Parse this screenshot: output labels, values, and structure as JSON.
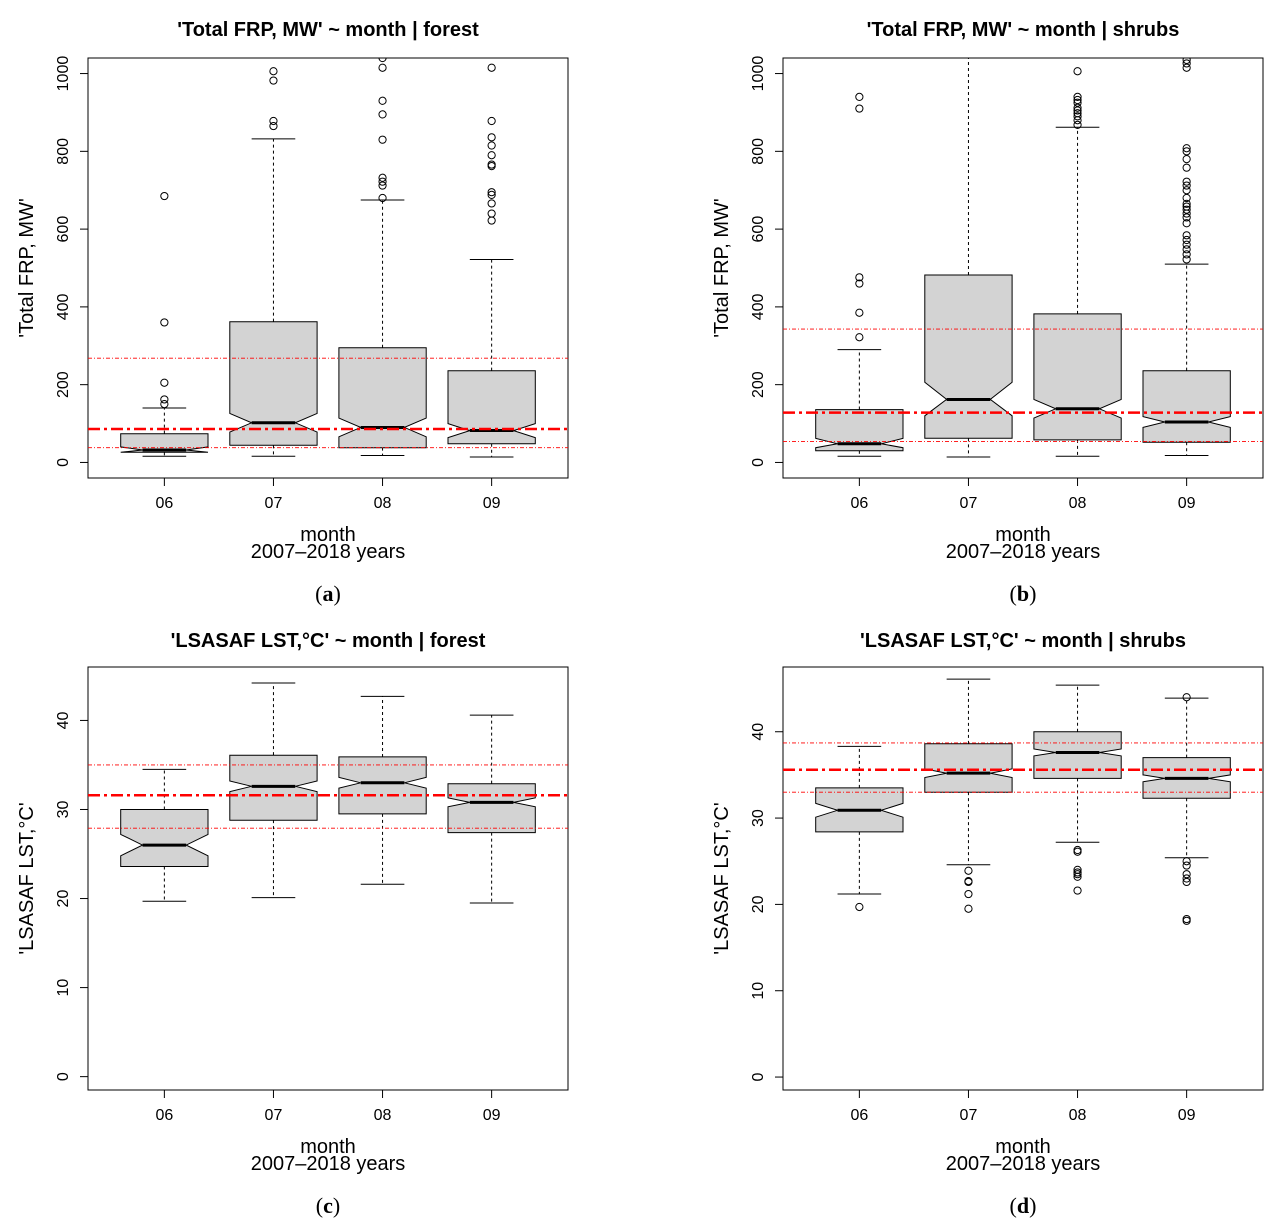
{
  "colors": {
    "box_fill": "#d3d3d3",
    "ref_line": "#ff0000",
    "median": "#000000"
  },
  "chart_data": [
    {
      "id": "a",
      "type": "box",
      "title": "'Total FRP, MW' ~ month | forest",
      "xlabel": "month",
      "xsublabel": "2007–2018 years",
      "ylabel": "'Total FRP, MW'",
      "caption": "a",
      "ylim": [
        -40,
        1040
      ],
      "yticks": [
        0,
        200,
        400,
        600,
        800,
        1000
      ],
      "categories": [
        "06",
        "07",
        "08",
        "09"
      ],
      "boxes": [
        {
          "q1": 26,
          "median": 32,
          "q3": 74,
          "lower_whisker": 16,
          "upper_whisker": 140,
          "notch": [
            24,
            40
          ],
          "outliers": [
            150,
            162,
            205,
            360,
            685
          ]
        },
        {
          "q1": 44,
          "median": 102,
          "q3": 362,
          "lower_whisker": 16,
          "upper_whisker": 832,
          "notch": [
            78,
            126
          ],
          "outliers": [
            865,
            878,
            982,
            1006
          ]
        },
        {
          "q1": 38,
          "median": 90,
          "q3": 295,
          "lower_whisker": 18,
          "upper_whisker": 675,
          "notch": [
            66,
            114
          ],
          "outliers": [
            680,
            712,
            722,
            732,
            830,
            895,
            930,
            1015,
            1040
          ]
        },
        {
          "q1": 48,
          "median": 82,
          "q3": 236,
          "lower_whisker": 14,
          "upper_whisker": 522,
          "notch": [
            64,
            100
          ],
          "outliers": [
            622,
            640,
            666,
            688,
            695,
            762,
            766,
            790,
            815,
            836,
            878,
            1015
          ]
        }
      ],
      "hlines": [
        {
          "value": 86,
          "style": "main"
        },
        {
          "value": 268,
          "style": "thin"
        },
        {
          "value": 38,
          "style": "thin"
        }
      ]
    },
    {
      "id": "b",
      "type": "box",
      "title": "'Total FRP, MW' ~ month | shrubs",
      "xlabel": "month",
      "xsublabel": "2007–2018 years",
      "ylabel": "'Total FRP, MW'",
      "caption": "b",
      "ylim": [
        -40,
        1040
      ],
      "yticks": [
        0,
        200,
        400,
        600,
        800,
        1000
      ],
      "categories": [
        "06",
        "07",
        "08",
        "09"
      ],
      "boxes": [
        {
          "q1": 30,
          "median": 48,
          "q3": 136,
          "lower_whisker": 16,
          "upper_whisker": 290,
          "notch": [
            38,
            62
          ],
          "outliers": [
            322,
            385,
            460,
            476,
            910,
            940
          ]
        },
        {
          "q1": 62,
          "median": 162,
          "q3": 482,
          "lower_whisker": 14,
          "upper_whisker": 1040,
          "notch": [
            120,
            206
          ],
          "outliers": []
        },
        {
          "q1": 58,
          "median": 138,
          "q3": 382,
          "lower_whisker": 16,
          "upper_whisker": 862,
          "notch": [
            114,
            162
          ],
          "outliers": [
            868,
            880,
            890,
            898,
            905,
            912,
            925,
            932,
            940,
            1006
          ]
        },
        {
          "q1": 52,
          "median": 104,
          "q3": 236,
          "lower_whisker": 18,
          "upper_whisker": 510,
          "notch": [
            90,
            118
          ],
          "outliers": [
            522,
            535,
            548,
            560,
            572,
            584,
            615,
            630,
            640,
            650,
            658,
            665,
            680,
            700,
            712,
            722,
            758,
            780,
            800,
            808,
            1015,
            1026,
            1035
          ]
        }
      ],
      "hlines": [
        {
          "value": 128,
          "style": "main"
        },
        {
          "value": 343,
          "style": "thin"
        },
        {
          "value": 54,
          "style": "thin"
        }
      ]
    },
    {
      "id": "c",
      "type": "box",
      "title": "'LSASAF LST,°C' ~ month | forest",
      "xlabel": "month",
      "xsublabel": "2007–2018 years",
      "ylabel": "'LSASAF LST,°C'",
      "caption": "c",
      "ylim": [
        -1.5,
        46
      ],
      "yticks": [
        0,
        10,
        20,
        30,
        40
      ],
      "categories": [
        "06",
        "07",
        "08",
        "09"
      ],
      "boxes": [
        {
          "q1": 23.6,
          "median": 26.0,
          "q3": 30.0,
          "lower_whisker": 19.7,
          "upper_whisker": 34.5,
          "notch": [
            24.8,
            27.2
          ],
          "outliers": []
        },
        {
          "q1": 28.8,
          "median": 32.6,
          "q3": 36.1,
          "lower_whisker": 20.1,
          "upper_whisker": 44.2,
          "notch": [
            32.0,
            33.2
          ],
          "outliers": []
        },
        {
          "q1": 29.5,
          "median": 33.0,
          "q3": 35.9,
          "lower_whisker": 21.6,
          "upper_whisker": 42.7,
          "notch": [
            32.4,
            33.6
          ],
          "outliers": []
        },
        {
          "q1": 27.4,
          "median": 30.8,
          "q3": 32.9,
          "lower_whisker": 19.5,
          "upper_whisker": 40.6,
          "notch": [
            30.3,
            31.3
          ],
          "outliers": []
        }
      ],
      "hlines": [
        {
          "value": 31.6,
          "style": "main"
        },
        {
          "value": 35.0,
          "style": "thin"
        },
        {
          "value": 27.9,
          "style": "thin"
        }
      ]
    },
    {
      "id": "d",
      "type": "box",
      "title": "'LSASAF LST,°C' ~ month | shrubs",
      "xlabel": "month",
      "xsublabel": "2007–2018 years",
      "ylabel": "'LSASAF LST,°C'",
      "caption": "d",
      "ylim": [
        -1.5,
        47.5
      ],
      "yticks": [
        0,
        10,
        20,
        30,
        40
      ],
      "categories": [
        "06",
        "07",
        "08",
        "09"
      ],
      "boxes": [
        {
          "q1": 28.4,
          "median": 30.9,
          "q3": 33.5,
          "lower_whisker": 21.2,
          "upper_whisker": 38.3,
          "notch": [
            30.1,
            31.7
          ],
          "outliers": [
            19.7
          ]
        },
        {
          "q1": 33.0,
          "median": 35.2,
          "q3": 38.6,
          "lower_whisker": 24.6,
          "upper_whisker": 46.1,
          "notch": [
            34.7,
            35.7
          ],
          "outliers": [
            19.5,
            21.2,
            22.6,
            22.7,
            23.9
          ]
        },
        {
          "q1": 34.6,
          "median": 37.6,
          "q3": 40.0,
          "lower_whisker": 27.2,
          "upper_whisker": 45.4,
          "notch": [
            37.2,
            38.0
          ],
          "outliers": [
            21.6,
            23.2,
            23.5,
            23.7,
            24.0,
            26.1,
            26.3
          ]
        },
        {
          "q1": 32.3,
          "median": 34.6,
          "q3": 37.0,
          "lower_whisker": 25.4,
          "upper_whisker": 43.9,
          "notch": [
            34.2,
            35.0
          ],
          "outliers": [
            18.1,
            18.3,
            22.6,
            23.0,
            23.5,
            24.5,
            25.0,
            44.0
          ]
        }
      ],
      "hlines": [
        {
          "value": 35.6,
          "style": "main"
        },
        {
          "value": 38.7,
          "style": "thin"
        },
        {
          "value": 33.0,
          "style": "thin"
        }
      ]
    }
  ]
}
